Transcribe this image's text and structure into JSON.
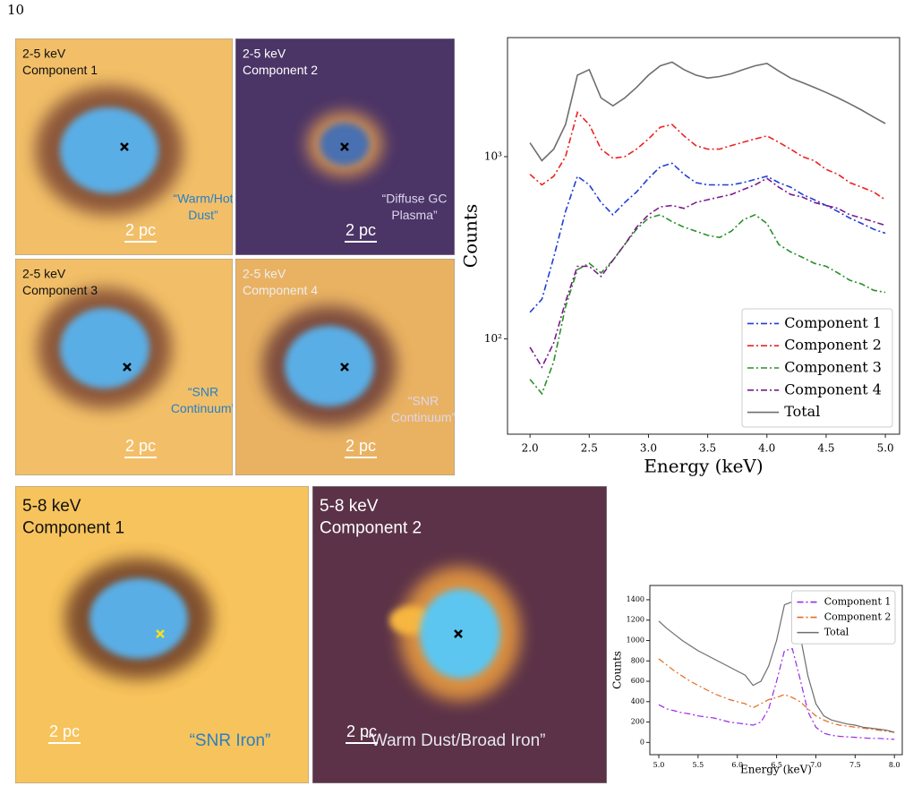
{
  "page_number": "10",
  "images": [
    {
      "band": "2-5 keV",
      "component": "Component 1",
      "annotation": [
        "“Warm/Hot",
        "Dust”"
      ],
      "scale": "2 pc"
    },
    {
      "band": "2-5 keV",
      "component": "Component 2",
      "annotation": [
        "“Diffuse GC",
        "Plasma”"
      ],
      "scale": "2 pc"
    },
    {
      "band": "2-5 keV",
      "component": "Component 3",
      "annotation": [
        "“SNR",
        "Continuum”"
      ],
      "scale": "2 pc"
    },
    {
      "band": "2-5 keV",
      "component": "Component 4",
      "annotation": [
        "“SNR",
        "Continuum”"
      ],
      "scale": "2 pc"
    },
    {
      "band": "5-8 keV",
      "component": "Component 1",
      "annotation": [
        "“SNR Iron”"
      ],
      "scale": "2 pc"
    },
    {
      "band": "5-8 keV",
      "component": "Component 2",
      "annotation": [
        "“Warm Dust/Broad Iron”"
      ],
      "scale": "2 pc"
    }
  ],
  "chart_data": [
    {
      "type": "line",
      "xlabel": "Energy (keV)",
      "ylabel": "Counts",
      "log_y": true,
      "legend": "lower right",
      "xlim": [
        1.81,
        5.12
      ],
      "ylim": [
        30,
        4500
      ],
      "xticks": [
        {
          "value": 2,
          "label": "2.0"
        },
        {
          "value": 2.5,
          "label": "2.5"
        },
        {
          "value": 3,
          "label": "3.0"
        },
        {
          "value": 3.5,
          "label": "3.5"
        },
        {
          "value": 4,
          "label": "4.0"
        },
        {
          "value": 4.5,
          "label": "4.5"
        },
        {
          "value": 5,
          "label": "5.0"
        }
      ],
      "yticks": [
        {
          "value": 100,
          "label": "10²"
        },
        {
          "value": 1000,
          "label": "10³"
        }
      ],
      "x": [
        2.0,
        2.1,
        2.2,
        2.3,
        2.4,
        2.5,
        2.6,
        2.7,
        2.8,
        2.9,
        3.0,
        3.1,
        3.2,
        3.3,
        3.4,
        3.5,
        3.6,
        3.7,
        3.8,
        3.9,
        4.0,
        4.1,
        4.2,
        4.3,
        4.4,
        4.5,
        4.6,
        4.7,
        4.8,
        4.9,
        5.0
      ],
      "series": [
        {
          "name": "Component 1",
          "color": "#1f3fd6",
          "linestyle": "dashdot",
          "values": [
            140,
            165,
            280,
            500,
            780,
            700,
            560,
            480,
            560,
            640,
            760,
            880,
            920,
            800,
            720,
            700,
            700,
            700,
            720,
            750,
            780,
            720,
            680,
            620,
            580,
            540,
            500,
            460,
            430,
            400,
            380
          ]
        },
        {
          "name": "Component 2",
          "color": "#ec2222",
          "linestyle": "dashdot",
          "values": [
            800,
            700,
            780,
            1000,
            1750,
            1500,
            1100,
            980,
            1000,
            1100,
            1250,
            1450,
            1500,
            1300,
            1150,
            1100,
            1100,
            1150,
            1200,
            1250,
            1300,
            1200,
            1100,
            1000,
            950,
            850,
            800,
            720,
            680,
            640,
            580
          ]
        },
        {
          "name": "Component 3",
          "color": "#2a8f2a",
          "linestyle": "dashdot",
          "values": [
            60,
            50,
            75,
            150,
            240,
            260,
            230,
            270,
            330,
            400,
            460,
            480,
            440,
            410,
            390,
            370,
            360,
            390,
            450,
            480,
            430,
            330,
            300,
            280,
            260,
            250,
            230,
            210,
            200,
            185,
            180
          ]
        },
        {
          "name": "Component 4",
          "color": "#7a1a8c",
          "linestyle": "dashdot",
          "values": [
            90,
            70,
            95,
            160,
            250,
            250,
            220,
            270,
            330,
            410,
            480,
            530,
            540,
            520,
            560,
            580,
            600,
            620,
            660,
            700,
            760,
            680,
            620,
            600,
            560,
            540,
            520,
            480,
            460,
            440,
            420
          ]
        },
        {
          "name": "Total",
          "color": "#6e6e6e",
          "linestyle": "solid",
          "values": [
            1190,
            950,
            1100,
            1500,
            2800,
            3000,
            2100,
            1900,
            2100,
            2400,
            2800,
            3150,
            3300,
            3000,
            2800,
            2700,
            2750,
            2850,
            3000,
            3150,
            3250,
            2950,
            2700,
            2550,
            2400,
            2250,
            2100,
            1950,
            1800,
            1650,
            1520
          ]
        }
      ]
    },
    {
      "type": "line",
      "xlabel": "Energy (keV)",
      "ylabel": "Counts",
      "log_y": false,
      "legend": "upper right",
      "xlim": [
        4.886,
        8.1
      ],
      "ylim": [
        -120,
        1540
      ],
      "xticks": [
        {
          "value": 5,
          "label": "5.0"
        },
        {
          "value": 5.5,
          "label": "5.5"
        },
        {
          "value": 6,
          "label": "6.0"
        },
        {
          "value": 6.5,
          "label": "6.5"
        },
        {
          "value": 7,
          "label": "7.0"
        },
        {
          "value": 7.5,
          "label": "7.5"
        },
        {
          "value": 8,
          "label": "8.0"
        }
      ],
      "yticks": [
        0,
        200,
        400,
        600,
        800,
        1000,
        1200,
        1400
      ],
      "x": [
        5.0,
        5.1,
        5.2,
        5.3,
        5.4,
        5.5,
        5.6,
        5.7,
        5.8,
        5.9,
        6.0,
        6.1,
        6.2,
        6.3,
        6.4,
        6.5,
        6.6,
        6.7,
        6.8,
        6.9,
        7.0,
        7.1,
        7.2,
        7.3,
        7.4,
        7.5,
        7.6,
        7.7,
        7.8,
        7.9,
        8.0
      ],
      "series": [
        {
          "name": "Component 1",
          "color": "#9b2be6",
          "linestyle": "dashdot",
          "values": [
            370,
            330,
            310,
            290,
            280,
            260,
            250,
            240,
            220,
            200,
            190,
            180,
            170,
            200,
            330,
            600,
            900,
            920,
            620,
            300,
            150,
            90,
            70,
            60,
            55,
            50,
            45,
            40,
            40,
            35,
            30
          ]
        },
        {
          "name": "Component 2",
          "color": "#e36a1c",
          "linestyle": "dashdot",
          "values": [
            820,
            760,
            700,
            650,
            600,
            560,
            520,
            480,
            450,
            420,
            400,
            380,
            340,
            380,
            420,
            440,
            470,
            440,
            400,
            330,
            260,
            220,
            190,
            170,
            160,
            150,
            140,
            130,
            120,
            110,
            100
          ]
        },
        {
          "name": "Total",
          "color": "#6e6e6e",
          "linestyle": "solid",
          "values": [
            1190,
            1120,
            1060,
            1000,
            950,
            900,
            860,
            820,
            780,
            740,
            700,
            660,
            560,
            600,
            750,
            1000,
            1350,
            1380,
            1050,
            650,
            380,
            260,
            220,
            200,
            180,
            170,
            150,
            140,
            130,
            120,
            100
          ]
        }
      ]
    }
  ]
}
